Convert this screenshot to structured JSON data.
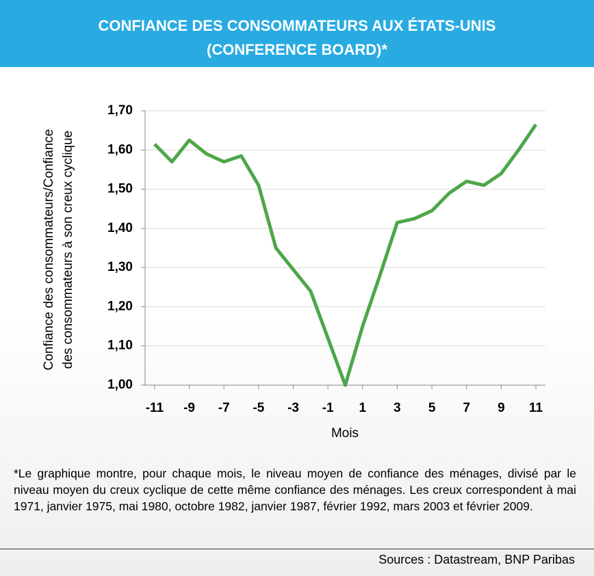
{
  "chart_data": {
    "type": "line",
    "title": [
      "CONFIANCE DES CONSOMMATEURS AUX ÉTATS-UNIS",
      "(CONFERENCE BOARD)*"
    ],
    "ylabel": [
      "Confiance des consommateurs/Confiance",
      "des consommateurs à son creux cyclique"
    ],
    "xlabel": "Mois",
    "x": [
      -11,
      -10,
      -9,
      -8,
      -7,
      -6,
      -5,
      -4,
      -3,
      -2,
      -1,
      0,
      1,
      2,
      3,
      4,
      5,
      6,
      7,
      8,
      9,
      10,
      11
    ],
    "series": [
      {
        "name": "Confiance",
        "color": "#4ea64a",
        "values": [
          1.615,
          1.57,
          1.625,
          1.59,
          1.57,
          1.585,
          1.51,
          1.35,
          1.295,
          1.24,
          1.12,
          1.0,
          1.15,
          1.28,
          1.415,
          1.425,
          1.445,
          1.49,
          1.52,
          1.51,
          1.54,
          1.6,
          1.665
        ]
      }
    ],
    "xlim": [
      -11.55,
      11.55
    ],
    "xticks": [
      -11,
      -9,
      -7,
      -5,
      -3,
      -1,
      1,
      3,
      5,
      7,
      9,
      11
    ],
    "ylim": [
      1.0,
      1.7
    ],
    "yticks": [
      {
        "value": 1.0,
        "label": "1,00"
      },
      {
        "value": 1.1,
        "label": "1,10"
      },
      {
        "value": 1.2,
        "label": "1,20"
      },
      {
        "value": 1.3,
        "label": "1,30"
      },
      {
        "value": 1.4,
        "label": "1,40"
      },
      {
        "value": 1.5,
        "label": "1,50"
      },
      {
        "value": 1.6,
        "label": "1,60"
      },
      {
        "value": 1.7,
        "label": "1,70"
      }
    ],
    "grid": true,
    "footnote": "*Le graphique montre, pour chaque mois, le niveau moyen de confiance des ménages, divisé par le niveau moyen du creux cyclique de cette même confiance des ménages. Les creux correspondent à mai 1971, janvier 1975, mai 1980, octobre 1982, janvier 1987, février 1992, mars 2003 et février 2009.",
    "source": "Sources : Datastream, BNP Paribas"
  }
}
